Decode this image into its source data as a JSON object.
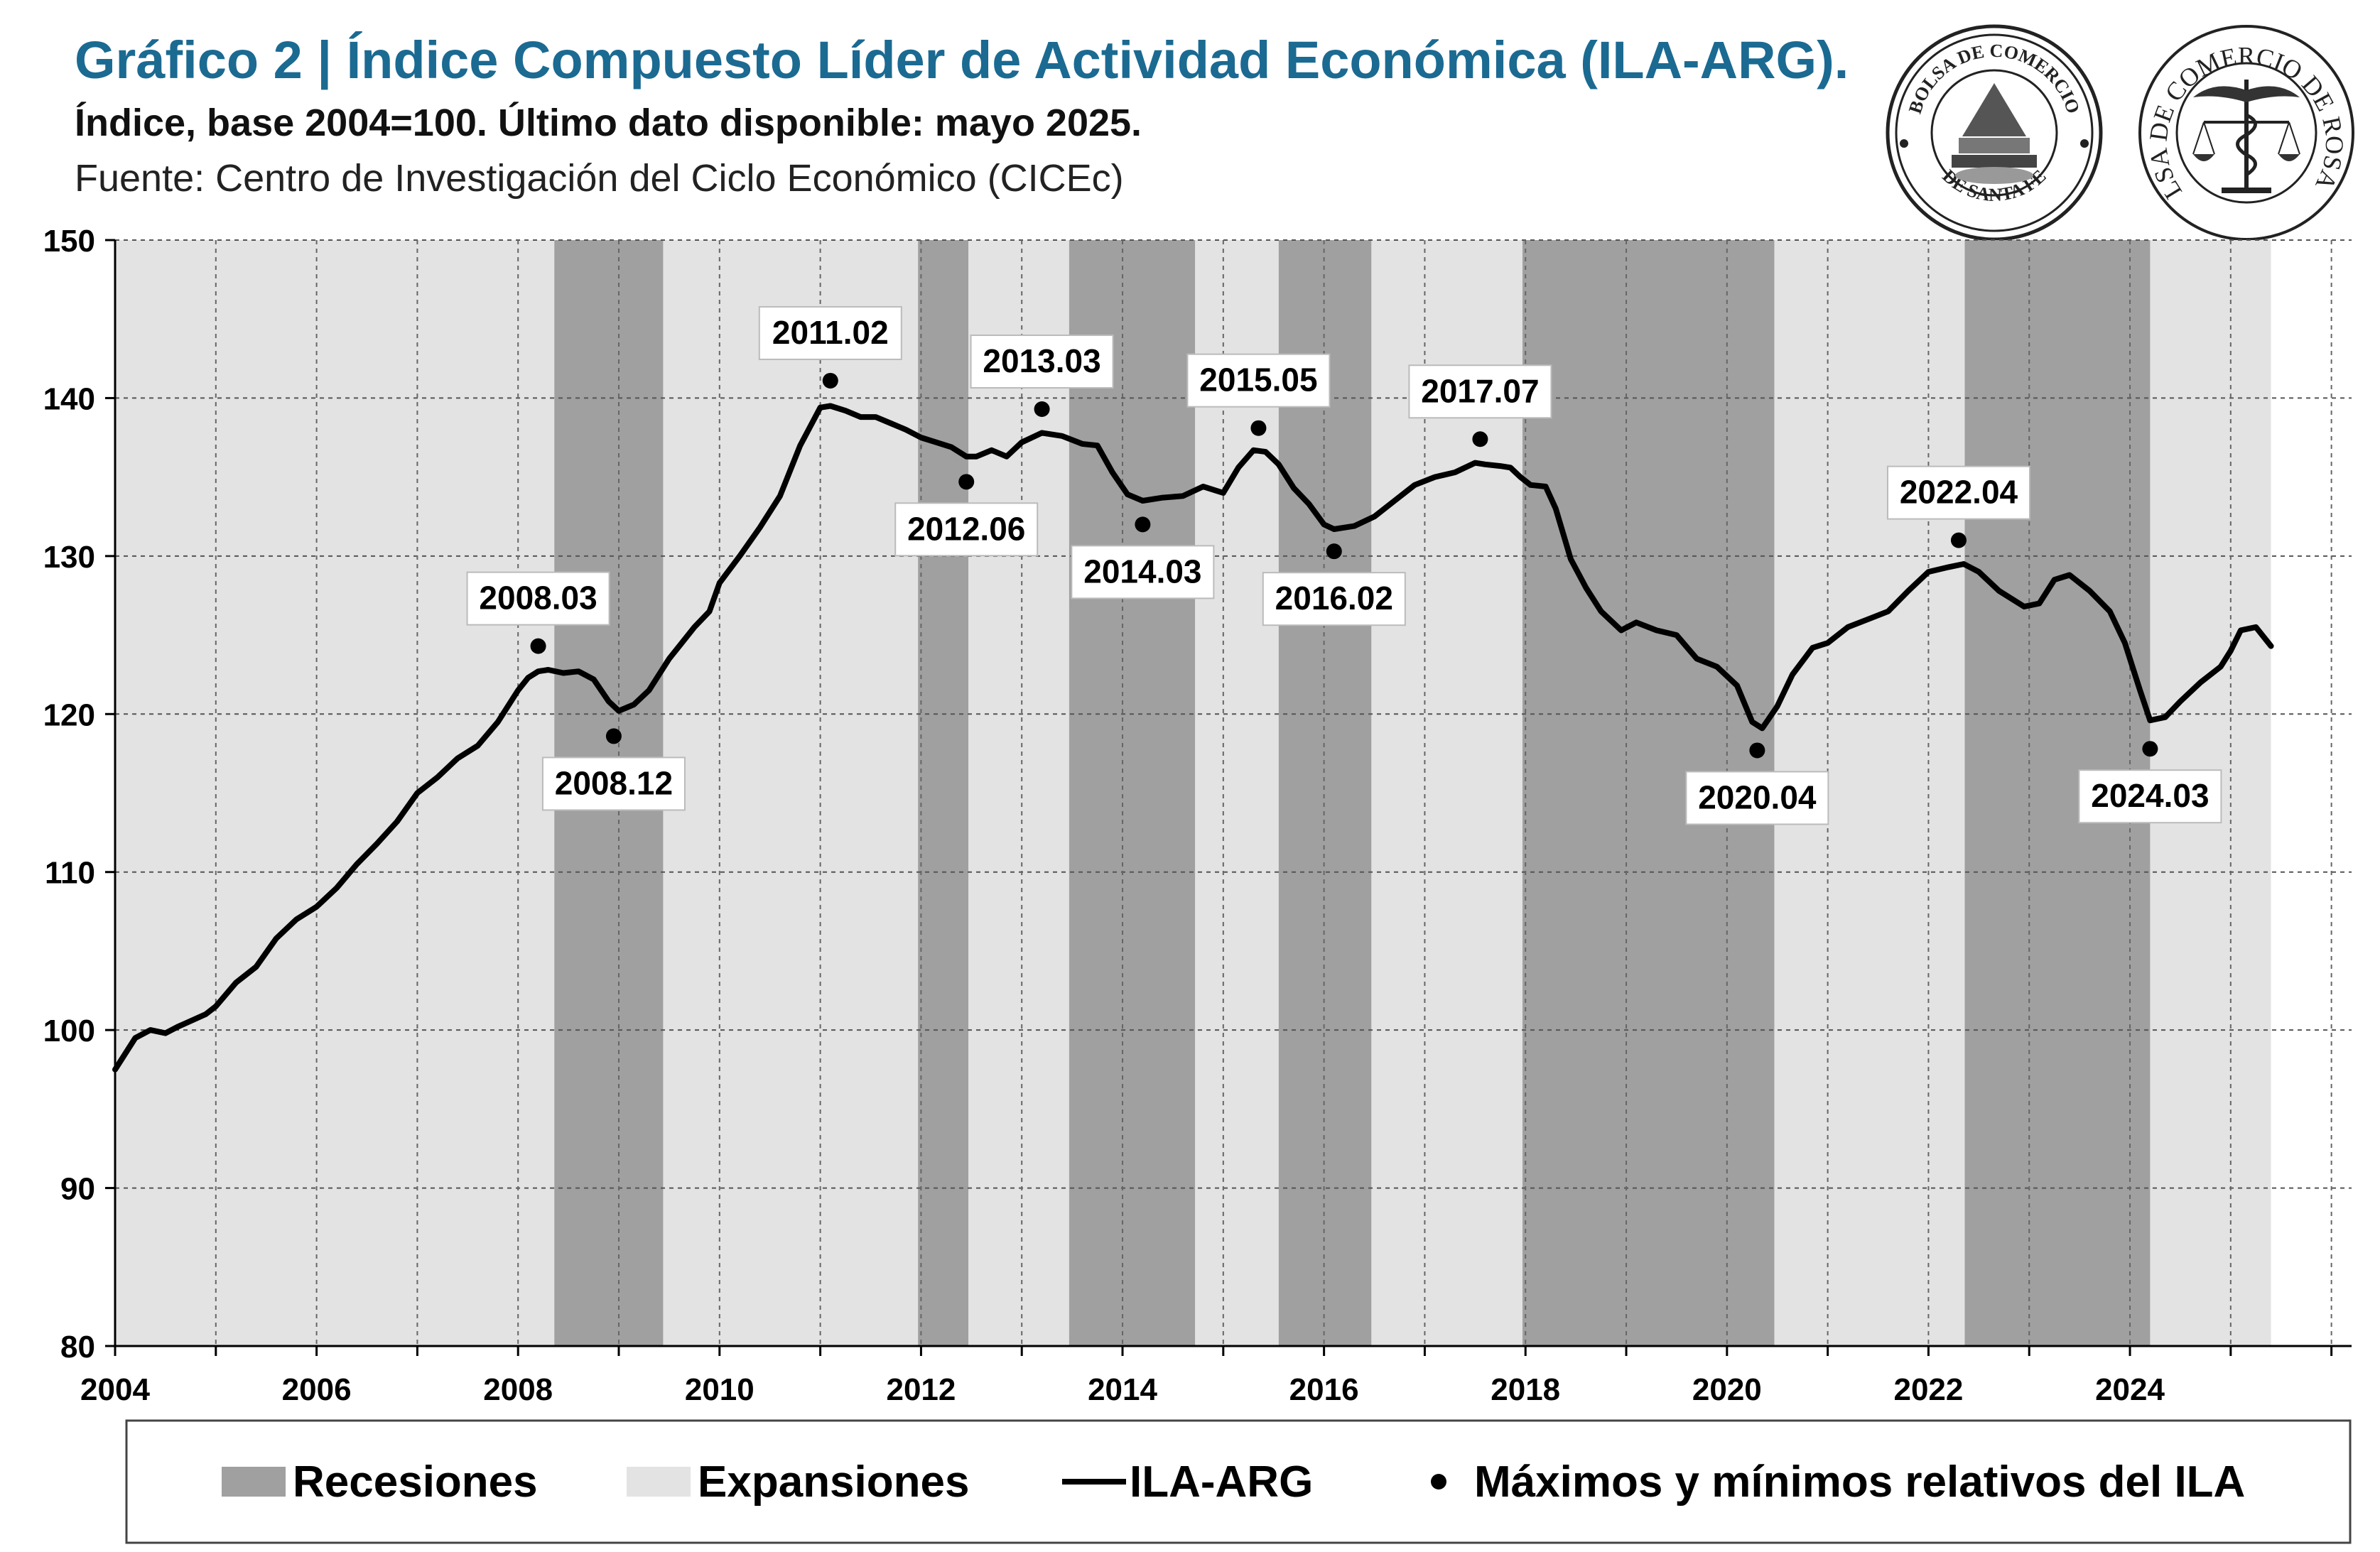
{
  "header": {
    "title": "Gráfico 2 | Índice Compuesto Líder de Actividad Económica (ILA-ARG).",
    "subtitle": "Índice, base 2004=100. Último dato disponible: mayo 2025.",
    "source": "Fuente: Centro de Investigación del Ciclo Económico (CICEc)"
  },
  "logos": {
    "left_text_top": "BOLSA DE COMERCIO",
    "left_text_bottom": "DE SANTA FE",
    "right_text": "BOLSA DE COMERCIO DE ROSARIO"
  },
  "colors": {
    "title": "#1b6a92",
    "recession": "#a0a0a0",
    "expansion": "#e3e3e3",
    "line": "#000000"
  },
  "chart_data": {
    "type": "line",
    "xlim": [
      2004,
      2026.2
    ],
    "ylim": [
      80,
      150
    ],
    "x_ticks": [
      "2004",
      "2006",
      "2008",
      "2010",
      "2012",
      "2014",
      "2016",
      "2018",
      "2020",
      "2022",
      "2024"
    ],
    "y_ticks": [
      "80",
      "90",
      "100",
      "110",
      "120",
      "130",
      "140",
      "150"
    ],
    "grid": true,
    "legend_position": "bottom",
    "legend": {
      "recession": "Recesiones",
      "expansion": "Expansiones",
      "line": "ILA-ARG",
      "points": "Máximos y mínimos relativos del ILA"
    },
    "recessions": [
      [
        2008.36,
        2009.44
      ],
      [
        2011.97,
        2012.47
      ],
      [
        2013.47,
        2014.72
      ],
      [
        2015.55,
        2016.47
      ],
      [
        2017.97,
        2020.47
      ],
      [
        2022.36,
        2024.2
      ]
    ],
    "expansions": [
      [
        2004.0,
        2008.36
      ],
      [
        2009.44,
        2011.97
      ],
      [
        2012.47,
        2013.47
      ],
      [
        2014.72,
        2015.55
      ],
      [
        2016.47,
        2017.97
      ],
      [
        2020.47,
        2022.36
      ],
      [
        2024.2,
        2025.4
      ]
    ],
    "series": [
      {
        "name": "ILA-ARG",
        "x": [
          2004.0,
          2004.2,
          2004.35,
          2004.5,
          2004.62,
          2004.9,
          2005.0,
          2005.2,
          2005.4,
          2005.6,
          2005.8,
          2006.0,
          2006.2,
          2006.4,
          2006.6,
          2006.8,
          2007.0,
          2007.2,
          2007.4,
          2007.6,
          2007.8,
          2008.0,
          2008.1,
          2008.2,
          2008.3,
          2008.45,
          2008.6,
          2008.75,
          2008.9,
          2009.0,
          2009.15,
          2009.3,
          2009.5,
          2009.6,
          2009.75,
          2009.9,
          2010.0,
          2010.2,
          2010.4,
          2010.6,
          2010.8,
          2011.0,
          2011.1,
          2011.25,
          2011.4,
          2011.55,
          2011.7,
          2011.85,
          2012.0,
          2012.15,
          2012.3,
          2012.45,
          2012.55,
          2012.7,
          2012.85,
          2013.0,
          2013.2,
          2013.4,
          2013.6,
          2013.75,
          2013.9,
          2014.05,
          2014.2,
          2014.4,
          2014.6,
          2014.8,
          2015.0,
          2015.15,
          2015.3,
          2015.42,
          2015.55,
          2015.7,
          2015.85,
          2016.0,
          2016.1,
          2016.3,
          2016.5,
          2016.7,
          2016.9,
          2017.1,
          2017.3,
          2017.5,
          2017.6,
          2017.75,
          2017.85,
          2017.95,
          2018.05,
          2018.2,
          2018.3,
          2018.45,
          2018.6,
          2018.75,
          2018.95,
          2019.1,
          2019.3,
          2019.5,
          2019.7,
          2019.9,
          2020.1,
          2020.25,
          2020.35,
          2020.5,
          2020.65,
          2020.85,
          2021.0,
          2021.2,
          2021.4,
          2021.6,
          2021.8,
          2022.0,
          2022.2,
          2022.35,
          2022.5,
          2022.7,
          2022.95,
          2023.1,
          2023.25,
          2023.4,
          2023.6,
          2023.8,
          2023.95,
          2024.1,
          2024.2,
          2024.35,
          2024.5,
          2024.7,
          2024.9,
          2025.0,
          2025.1,
          2025.25,
          2025.4
        ],
        "y": [
          97.5,
          99.5,
          100.0,
          99.8,
          100.2,
          101.0,
          101.5,
          103.0,
          104.0,
          105.8,
          107.0,
          107.8,
          109.0,
          110.5,
          111.8,
          113.2,
          115.0,
          116.0,
          117.2,
          118.0,
          119.5,
          121.5,
          122.3,
          122.7,
          122.8,
          122.6,
          122.7,
          122.2,
          120.8,
          120.2,
          120.6,
          121.5,
          123.5,
          124.3,
          125.5,
          126.5,
          128.3,
          130.0,
          131.8,
          133.8,
          137.0,
          139.4,
          139.5,
          139.2,
          138.8,
          138.8,
          138.4,
          138.0,
          137.5,
          137.2,
          136.9,
          136.3,
          136.3,
          136.7,
          136.3,
          137.2,
          137.8,
          137.6,
          137.1,
          137.0,
          135.3,
          133.9,
          133.5,
          133.7,
          133.8,
          134.4,
          134.0,
          135.6,
          136.7,
          136.6,
          135.8,
          134.3,
          133.3,
          132.0,
          131.7,
          131.9,
          132.5,
          133.5,
          134.5,
          135.0,
          135.3,
          135.9,
          135.8,
          135.7,
          135.6,
          135.0,
          134.5,
          134.4,
          133.0,
          129.8,
          128.0,
          126.5,
          125.3,
          125.8,
          125.3,
          125.0,
          123.5,
          123.0,
          121.8,
          119.5,
          119.1,
          120.5,
          122.5,
          124.2,
          124.5,
          125.5,
          126.0,
          126.5,
          127.8,
          129.0,
          129.3,
          129.5,
          129.0,
          127.8,
          126.8,
          127.0,
          128.5,
          128.8,
          127.8,
          126.5,
          124.5,
          121.5,
          119.6,
          119.8,
          120.8,
          122.0,
          123.0,
          124.0,
          125.3,
          125.5,
          124.3
        ],
        "color": "#000000"
      }
    ],
    "turning_points": [
      {
        "label": "2008.03",
        "x": 2008.2,
        "y": 124.3,
        "pos": "above"
      },
      {
        "label": "2008.12",
        "x": 2008.95,
        "y": 118.6,
        "pos": "below"
      },
      {
        "label": "2011.02",
        "x": 2011.1,
        "y": 141.1,
        "pos": "above"
      },
      {
        "label": "2012.06",
        "x": 2012.45,
        "y": 134.7,
        "pos": "below"
      },
      {
        "label": "2013.03",
        "x": 2013.2,
        "y": 139.3,
        "pos": "above"
      },
      {
        "label": "2014.03",
        "x": 2014.2,
        "y": 132.0,
        "pos": "below"
      },
      {
        "label": "2015.05",
        "x": 2015.35,
        "y": 138.1,
        "pos": "above"
      },
      {
        "label": "2016.02",
        "x": 2016.1,
        "y": 130.3,
        "pos": "below"
      },
      {
        "label": "2017.07",
        "x": 2017.55,
        "y": 137.4,
        "pos": "above"
      },
      {
        "label": "2020.04",
        "x": 2020.3,
        "y": 117.7,
        "pos": "below"
      },
      {
        "label": "2022.04",
        "x": 2022.3,
        "y": 131.0,
        "pos": "above"
      },
      {
        "label": "2024.03",
        "x": 2024.2,
        "y": 117.8,
        "pos": "below"
      }
    ]
  }
}
